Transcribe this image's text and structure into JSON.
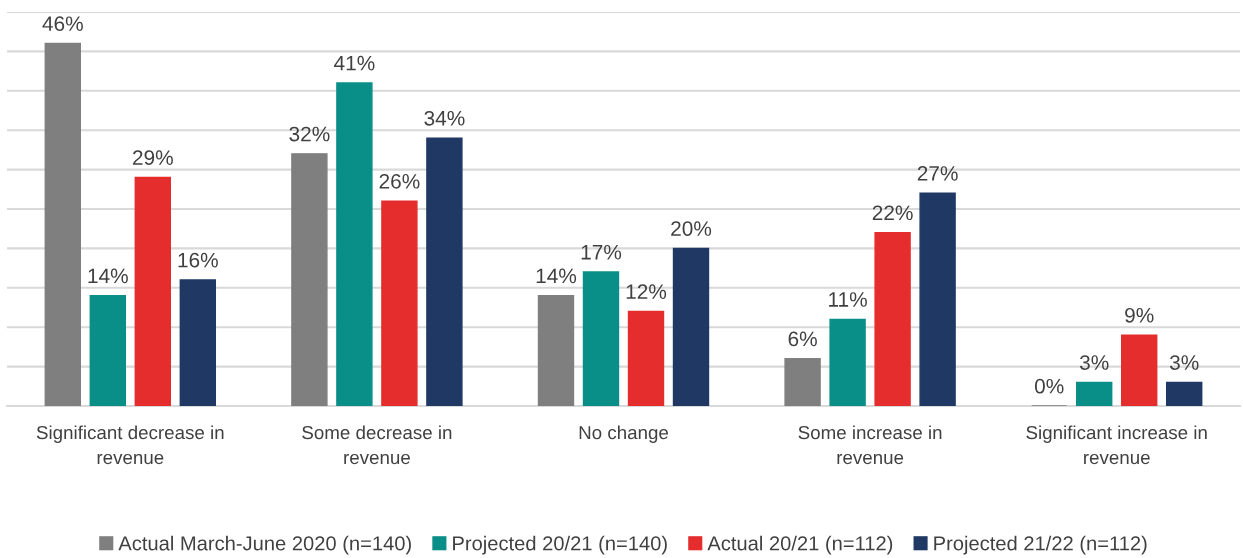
{
  "chart_data": {
    "type": "bar",
    "categories": [
      "Significant decrease in\nrevenue",
      "Some decrease in\nrevenue",
      "No change",
      "Some increase in\nrevenue",
      "Significant increase in\nrevenue"
    ],
    "series": [
      {
        "name": "Actual March-June 2020 (n=140)",
        "color": "#7f7f7f",
        "values": [
          46,
          32,
          14,
          6,
          0
        ],
        "value_labels": [
          "46%",
          "32%",
          "14%",
          "6%",
          "0%"
        ]
      },
      {
        "name": "Projected 20/21 (n=140)",
        "color": "#0a8f88",
        "values": [
          14,
          41,
          17,
          11,
          3
        ],
        "value_labels": [
          "14%",
          "41%",
          "17%",
          "11%",
          "3%"
        ]
      },
      {
        "name": "Actual 20/21 (n=112)",
        "color": "#e52d2e",
        "values": [
          29,
          26,
          12,
          22,
          9
        ],
        "value_labels": [
          "29%",
          "26%",
          "12%",
          "22%",
          "9%"
        ]
      },
      {
        "name": "Projected 21/22 (n=112)",
        "color": "#203864",
        "values": [
          16,
          34,
          20,
          27,
          3
        ],
        "value_labels": [
          "16%",
          "34%",
          "20%",
          "27%",
          "3%"
        ]
      }
    ],
    "ylim": [
      0,
      50
    ],
    "yticks": [
      {
        "value": 0,
        "label": null
      },
      {
        "value": 5,
        "label": null
      },
      {
        "value": 10,
        "label": null
      },
      {
        "value": 15,
        "label": null
      },
      {
        "value": 20,
        "label": null
      },
      {
        "value": 25,
        "label": null
      },
      {
        "value": 30,
        "label": null
      },
      {
        "value": 35,
        "label": null
      },
      {
        "value": 40,
        "label": null
      },
      {
        "value": 45,
        "label": null
      },
      {
        "value": 50,
        "label": null
      }
    ],
    "grid": "y",
    "legend": "bottom",
    "tick_labels": "x"
  }
}
